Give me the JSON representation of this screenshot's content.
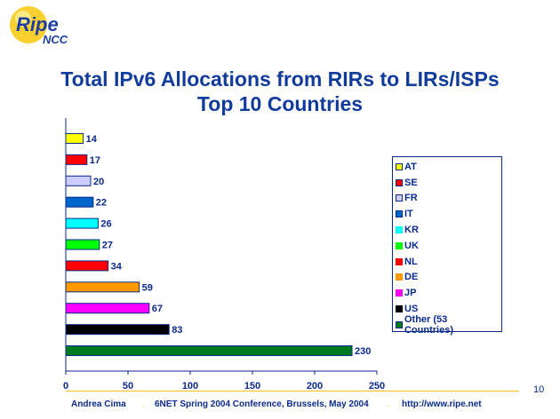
{
  "logo": {
    "text_main": "Ripe",
    "text_sub": "NCC"
  },
  "title": {
    "line1": "Total IPv6 Allocations from RIRs to LIRs/ISPs",
    "line2": "Top 10 Countries"
  },
  "chart_data": {
    "type": "bar",
    "orientation": "horizontal",
    "categories": [
      "AT",
      "SE",
      "FR",
      "IT",
      "KR",
      "UK",
      "NL",
      "DE",
      "JP",
      "US",
      "Other (53 Countries)"
    ],
    "values": [
      14,
      17,
      20,
      22,
      26,
      27,
      34,
      59,
      67,
      83,
      230
    ],
    "colors": [
      "#ffff00",
      "#ff0000",
      "#ccccff",
      "#0066cc",
      "#00ffff",
      "#00ff00",
      "#ff0000",
      "#ff9900",
      "#ff00ff",
      "#000000",
      "#007a1f"
    ],
    "xticks": [
      0,
      50,
      100,
      150,
      200,
      250
    ],
    "xlim": [
      0,
      250
    ],
    "legend_position": "right",
    "grid": false
  },
  "footer": {
    "author": "Andrea Cima",
    "event": "6NET Spring 2004 Conference, Brussels, May 2004",
    "url": "http://www.ripe.net",
    "page": "10"
  }
}
